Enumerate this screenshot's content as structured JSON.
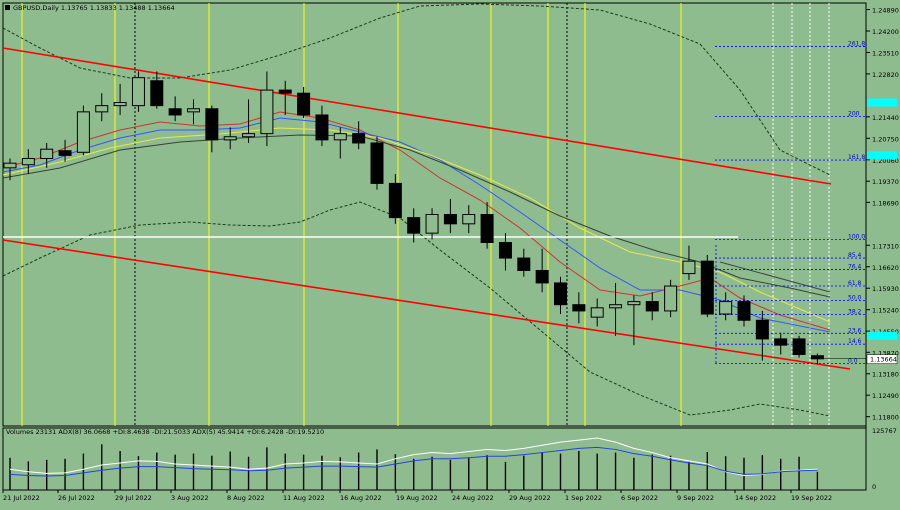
{
  "header": {
    "symbol_line": "GBPUSD,Daily  1.13765 1.13833 1.13488 1.13664"
  },
  "colors": {
    "background": "#8fbc8f",
    "candle_up": "#8fbc8f",
    "candle_down": "#000000",
    "channel": "#ff0000",
    "axis_text": "#000000",
    "price_tag": "#00ffff",
    "vline_yellow": "#ffff00",
    "fib_level": "#0000ff"
  },
  "price_axis": {
    "labels": [
      "1.24890",
      "1.24200",
      "1.23510",
      "1.22820",
      "1.21440",
      "1.20750",
      "1.20060",
      "1.19370",
      "1.18690",
      "1.17310",
      "1.16620",
      "1.15930",
      "1.15240",
      "1.14550",
      "1.13870",
      "1.13180",
      "1.12490",
      "1.11800"
    ],
    "current_price": "1.13664",
    "ylim": [
      1.115,
      1.251
    ]
  },
  "time_axis": {
    "labels": [
      "21 Jul 2022",
      "26 Jul 2022",
      "29 Jul 2022",
      "3 Aug 2022",
      "8 Aug 2022",
      "11 Aug 2022",
      "16 Aug 2022",
      "19 Aug 2022",
      "24 Aug 2022",
      "29 Aug 2022",
      "1 Sep 2022",
      "6 Sep 2022",
      "9 Sep 2022",
      "14 Sep 2022",
      "19 Sep 2022"
    ]
  },
  "fib_levels": [
    {
      "label": "261.8",
      "price": 1.237
    },
    {
      "label": "200",
      "price": 1.2145
    },
    {
      "label": "161.8",
      "price": 1.2005
    },
    {
      "label": "100.0",
      "price": 1.175
    },
    {
      "label": "85.4",
      "price": 1.169
    },
    {
      "label": "76.4",
      "price": 1.1653
    },
    {
      "label": "61.8",
      "price": 1.16
    },
    {
      "label": "50.0",
      "price": 1.1554
    },
    {
      "label": "38.2",
      "price": 1.1508
    },
    {
      "label": "23.6",
      "price": 1.1448
    },
    {
      "label": "14.6",
      "price": 1.1413
    },
    {
      "label": "0.0",
      "price": 1.1351
    }
  ],
  "chart_data": {
    "type": "candlestick",
    "series_name": "GBPUSD,Daily",
    "candles": [
      {
        "o": 1.198,
        "h": 1.201,
        "l": 1.194,
        "c": 1.1995
      },
      {
        "o": 1.199,
        "h": 1.204,
        "l": 1.196,
        "c": 1.201
      },
      {
        "o": 1.201,
        "h": 1.206,
        "l": 1.198,
        "c": 1.204
      },
      {
        "o": 1.2035,
        "h": 1.207,
        "l": 1.2,
        "c": 1.202
      },
      {
        "o": 1.203,
        "h": 1.218,
        "l": 1.202,
        "c": 1.216
      },
      {
        "o": 1.216,
        "h": 1.222,
        "l": 1.213,
        "c": 1.218
      },
      {
        "o": 1.218,
        "h": 1.225,
        "l": 1.215,
        "c": 1.219
      },
      {
        "o": 1.218,
        "h": 1.229,
        "l": 1.216,
        "c": 1.227
      },
      {
        "o": 1.226,
        "h": 1.229,
        "l": 1.217,
        "c": 1.218
      },
      {
        "o": 1.217,
        "h": 1.221,
        "l": 1.213,
        "c": 1.215
      },
      {
        "o": 1.216,
        "h": 1.22,
        "l": 1.212,
        "c": 1.217
      },
      {
        "o": 1.217,
        "h": 1.218,
        "l": 1.203,
        "c": 1.207
      },
      {
        "o": 1.207,
        "h": 1.211,
        "l": 1.204,
        "c": 1.208
      },
      {
        "o": 1.208,
        "h": 1.22,
        "l": 1.206,
        "c": 1.209
      },
      {
        "o": 1.209,
        "h": 1.229,
        "l": 1.205,
        "c": 1.223
      },
      {
        "o": 1.223,
        "h": 1.226,
        "l": 1.215,
        "c": 1.222
      },
      {
        "o": 1.222,
        "h": 1.224,
        "l": 1.214,
        "c": 1.215
      },
      {
        "o": 1.215,
        "h": 1.218,
        "l": 1.205,
        "c": 1.207
      },
      {
        "o": 1.207,
        "h": 1.211,
        "l": 1.201,
        "c": 1.209
      },
      {
        "o": 1.209,
        "h": 1.213,
        "l": 1.204,
        "c": 1.206
      },
      {
        "o": 1.206,
        "h": 1.208,
        "l": 1.191,
        "c": 1.193
      },
      {
        "o": 1.193,
        "h": 1.196,
        "l": 1.18,
        "c": 1.182
      },
      {
        "o": 1.182,
        "h": 1.185,
        "l": 1.174,
        "c": 1.177
      },
      {
        "o": 1.177,
        "h": 1.185,
        "l": 1.175,
        "c": 1.183
      },
      {
        "o": 1.183,
        "h": 1.188,
        "l": 1.177,
        "c": 1.18
      },
      {
        "o": 1.18,
        "h": 1.186,
        "l": 1.177,
        "c": 1.183
      },
      {
        "o": 1.183,
        "h": 1.187,
        "l": 1.172,
        "c": 1.174
      },
      {
        "o": 1.174,
        "h": 1.177,
        "l": 1.165,
        "c": 1.169
      },
      {
        "o": 1.169,
        "h": 1.172,
        "l": 1.163,
        "c": 1.165
      },
      {
        "o": 1.165,
        "h": 1.172,
        "l": 1.158,
        "c": 1.161
      },
      {
        "o": 1.161,
        "h": 1.163,
        "l": 1.151,
        "c": 1.154
      },
      {
        "o": 1.154,
        "h": 1.158,
        "l": 1.148,
        "c": 1.152
      },
      {
        "o": 1.15,
        "h": 1.156,
        "l": 1.147,
        "c": 1.153
      },
      {
        "o": 1.153,
        "h": 1.161,
        "l": 1.144,
        "c": 1.154
      },
      {
        "o": 1.154,
        "h": 1.157,
        "l": 1.141,
        "c": 1.155
      },
      {
        "o": 1.155,
        "h": 1.158,
        "l": 1.149,
        "c": 1.152
      },
      {
        "o": 1.152,
        "h": 1.162,
        "l": 1.15,
        "c": 1.16
      },
      {
        "o": 1.164,
        "h": 1.173,
        "l": 1.162,
        "c": 1.168
      },
      {
        "o": 1.168,
        "h": 1.17,
        "l": 1.15,
        "c": 1.151
      },
      {
        "o": 1.151,
        "h": 1.158,
        "l": 1.149,
        "c": 1.155
      },
      {
        "o": 1.155,
        "h": 1.157,
        "l": 1.147,
        "c": 1.149
      },
      {
        "o": 1.149,
        "h": 1.152,
        "l": 1.136,
        "c": 1.143
      },
      {
        "o": 1.143,
        "h": 1.145,
        "l": 1.138,
        "c": 1.141
      },
      {
        "o": 1.143,
        "h": 1.144,
        "l": 1.137,
        "c": 1.138
      },
      {
        "o": 1.1376,
        "h": 1.1383,
        "l": 1.1349,
        "c": 1.1366
      }
    ]
  },
  "indicator": {
    "legend": "Volumes 23131  ADX(8) 36.0668 +DI:8.4638 -DI:21.5033  ADX(5) 45.9414 +DI:6.2428 -DI:19.5210",
    "axis_top": "125767",
    "axis_bottom": "0",
    "volumes": [
      62,
      55,
      58,
      60,
      70,
      88,
      75,
      65,
      72,
      68,
      70,
      66,
      74,
      64,
      82,
      70,
      68,
      66,
      63,
      72,
      78,
      69,
      60,
      64,
      58,
      63,
      67,
      54,
      66,
      73,
      70,
      75,
      70,
      72,
      62,
      68,
      66,
      54,
      73,
      65,
      62,
      67,
      60,
      64,
      35
    ],
    "adx_line": [
      40,
      35,
      32,
      33,
      40,
      48,
      52,
      56,
      55,
      50,
      48,
      46,
      44,
      40,
      42,
      50,
      52,
      55,
      54,
      52,
      50,
      60,
      68,
      72,
      70,
      74,
      78,
      76,
      80,
      86,
      92,
      96,
      100,
      92,
      80,
      72,
      62,
      56,
      50,
      35,
      28,
      30,
      36,
      38,
      40
    ],
    "di_line": [
      30,
      28,
      27,
      28,
      33,
      38,
      42,
      45,
      45,
      43,
      41,
      40,
      39,
      37,
      38,
      42,
      44,
      46,
      46,
      45,
      44,
      50,
      56,
      60,
      60,
      62,
      65,
      65,
      68,
      72,
      76,
      80,
      82,
      78,
      70,
      65,
      58,
      52,
      47,
      36,
      30,
      31,
      35,
      37,
      38
    ]
  }
}
